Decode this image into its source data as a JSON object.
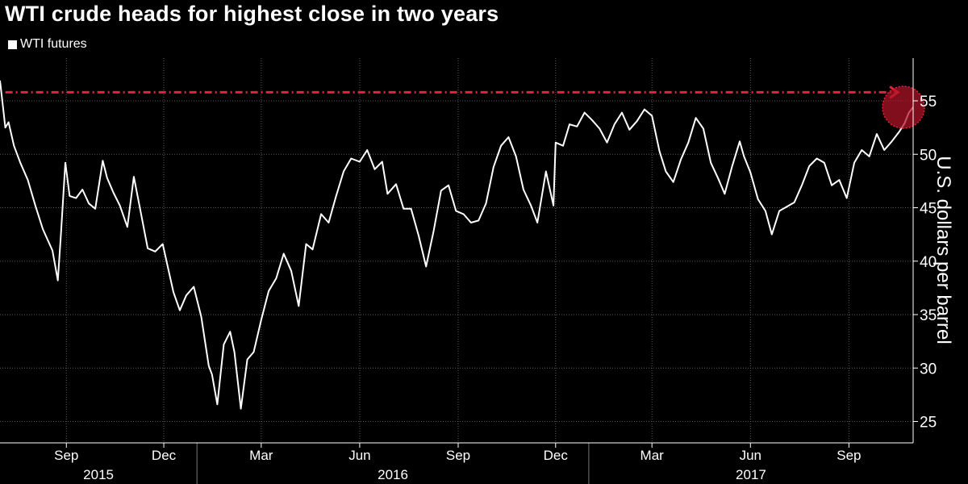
{
  "chart_data": {
    "type": "line",
    "title": "WTI crude heads for highest close in two years",
    "ylabel": "U.S. dollars per barrel",
    "ylim": [
      23,
      59
    ],
    "yticks": [
      25,
      30,
      35,
      40,
      45,
      50,
      55
    ],
    "y_axis_side": "right",
    "grid": "vertical-dotted and horizontal-dotted",
    "legend": "top-left",
    "month_ticks": [
      "Sep",
      "Dec",
      "Mar",
      "Jun",
      "Sep",
      "Dec",
      "Mar",
      "Jun",
      "Sep"
    ],
    "year_labels": [
      "2015",
      "2016",
      "2017"
    ],
    "x_range": [
      "2015-07-01",
      "2017-10-31"
    ],
    "series": [
      {
        "name": "WTI futures",
        "color": "#ffffff",
        "x": [
          "2015-07-01",
          "2015-07-06",
          "2015-07-09",
          "2015-07-14",
          "2015-07-20",
          "2015-07-27",
          "2015-08-03",
          "2015-08-10",
          "2015-08-14",
          "2015-08-19",
          "2015-08-24",
          "2015-08-27",
          "2015-08-31",
          "2015-09-04",
          "2015-09-10",
          "2015-09-16",
          "2015-09-22",
          "2015-09-28",
          "2015-10-05",
          "2015-10-09",
          "2015-10-15",
          "2015-10-21",
          "2015-10-28",
          "2015-11-03",
          "2015-11-10",
          "2015-11-16",
          "2015-11-23",
          "2015-11-30",
          "2015-12-04",
          "2015-12-10",
          "2015-12-16",
          "2015-12-22",
          "2015-12-29",
          "2016-01-05",
          "2016-01-12",
          "2016-01-15",
          "2016-01-20",
          "2016-01-26",
          "2016-02-01",
          "2016-02-05",
          "2016-02-11",
          "2016-02-17",
          "2016-02-23",
          "2016-03-01",
          "2016-03-08",
          "2016-03-15",
          "2016-03-22",
          "2016-03-29",
          "2016-04-05",
          "2016-04-12",
          "2016-04-18",
          "2016-04-26",
          "2016-05-03",
          "2016-05-10",
          "2016-05-17",
          "2016-05-24",
          "2016-06-01",
          "2016-06-08",
          "2016-06-15",
          "2016-06-22",
          "2016-06-27",
          "2016-07-05",
          "2016-07-12",
          "2016-07-19",
          "2016-07-26",
          "2016-08-02",
          "2016-08-09",
          "2016-08-16",
          "2016-08-23",
          "2016-08-30",
          "2016-09-06",
          "2016-09-13",
          "2016-09-20",
          "2016-09-27",
          "2016-10-04",
          "2016-10-11",
          "2016-10-18",
          "2016-10-25",
          "2016-11-01",
          "2016-11-08",
          "2016-11-14",
          "2016-11-22",
          "2016-11-29",
          "2016-12-01",
          "2016-12-08",
          "2016-12-14",
          "2016-12-21",
          "2016-12-28",
          "2017-01-04",
          "2017-01-11",
          "2017-01-18",
          "2017-01-25",
          "2017-02-01",
          "2017-02-08",
          "2017-02-15",
          "2017-02-22",
          "2017-03-01",
          "2017-03-08",
          "2017-03-14",
          "2017-03-21",
          "2017-03-28",
          "2017-04-04",
          "2017-04-11",
          "2017-04-18",
          "2017-04-25",
          "2017-05-02",
          "2017-05-08",
          "2017-05-15",
          "2017-05-22",
          "2017-05-26",
          "2017-06-01",
          "2017-06-08",
          "2017-06-15",
          "2017-06-21",
          "2017-06-28",
          "2017-07-05",
          "2017-07-12",
          "2017-07-19",
          "2017-07-26",
          "2017-08-02",
          "2017-08-09",
          "2017-08-16",
          "2017-08-23",
          "2017-08-30",
          "2017-09-06",
          "2017-09-13",
          "2017-09-20",
          "2017-09-27",
          "2017-10-04",
          "2017-10-11",
          "2017-10-18",
          "2017-10-23",
          "2017-10-27",
          "2017-10-31"
        ],
        "values": [
          56.9,
          52.5,
          53,
          50.8,
          49.2,
          47.6,
          45.2,
          43,
          42.1,
          41,
          38.2,
          42.6,
          49.2,
          46.1,
          45.9,
          46.7,
          45.4,
          44.9,
          49.4,
          47.8,
          46.4,
          45.2,
          43.2,
          47.9,
          44.3,
          41.2,
          40.9,
          41.6,
          39.8,
          37.1,
          35.4,
          36.8,
          37.6,
          34.8,
          30.2,
          29.4,
          26.6,
          32.2,
          33.4,
          31.5,
          26.2,
          30.8,
          31.5,
          34.5,
          37.2,
          38.4,
          40.7,
          39.1,
          35.8,
          41.6,
          41.1,
          44.4,
          43.6,
          46.1,
          48.4,
          49.6,
          49.3,
          50.4,
          48.6,
          49.3,
          46.3,
          47.2,
          44.9,
          44.9,
          42.4,
          39.5,
          42.8,
          46.6,
          47.1,
          44.7,
          44.4,
          43.6,
          43.8,
          45.4,
          48.8,
          50.8,
          51.6,
          49.8,
          46.7,
          45.2,
          43.6,
          48.4,
          45.2,
          51.1,
          50.8,
          52.8,
          52.6,
          53.9,
          53.2,
          52.4,
          51.1,
          52.8,
          53.9,
          52.3,
          53.1,
          54.2,
          53.6,
          50.3,
          48.4,
          47.4,
          49.5,
          51.1,
          53.4,
          52.4,
          49.2,
          47.7,
          46.3,
          48.9,
          51.2,
          49.8,
          48.3,
          45.8,
          44.7,
          42.5,
          44.7,
          45.1,
          45.5,
          47.1,
          48.9,
          49.6,
          49.2,
          47.1,
          47.6,
          45.9,
          49.2,
          50.4,
          49.8,
          51.9,
          50.4,
          51.2,
          52.1,
          52.9,
          53.9,
          54.4
        ]
      }
    ],
    "annotations": [
      {
        "type": "dashed-arrow",
        "label": "",
        "y": 55.8,
        "x_start": "2015-07-06",
        "x_end": "2017-10-16",
        "color": "#e8203a"
      },
      {
        "type": "highlight-circle",
        "x": "2017-10-31",
        "y": 54.4,
        "color": "#b31428"
      }
    ]
  }
}
